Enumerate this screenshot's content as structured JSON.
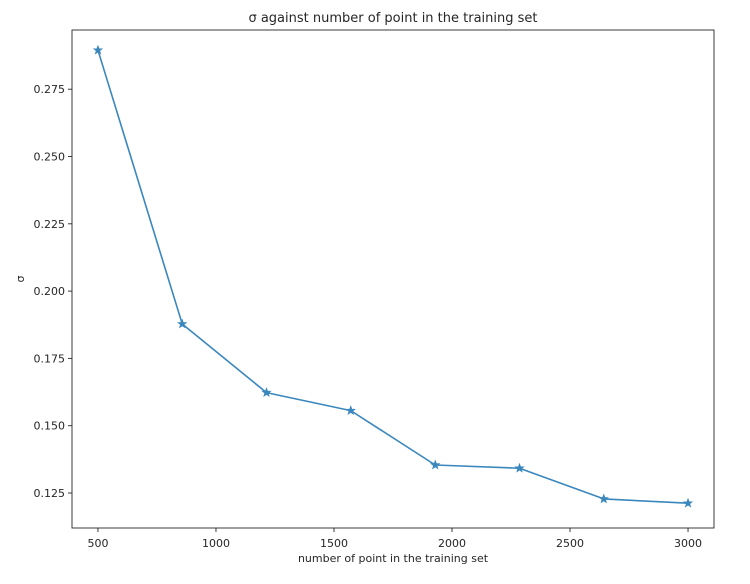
{
  "chart_data": {
    "type": "line",
    "title": "σ against number of point in the training set",
    "xlabel": "number of point in the training set",
    "ylabel": "σ",
    "xlim": [
      390,
      3110
    ],
    "ylim": [
      0.112,
      0.297
    ],
    "x_ticks": [
      500,
      1000,
      1500,
      2000,
      2500,
      3000
    ],
    "y_ticks": [
      0.125,
      0.15,
      0.175,
      0.2,
      0.225,
      0.25,
      0.275
    ],
    "y_tick_labels": [
      "0.125",
      "0.150",
      "0.175",
      "0.200",
      "0.225",
      "0.250",
      "0.275"
    ],
    "grid": false,
    "marker": "star",
    "color": "#3a87be",
    "series": [
      {
        "x": [
          500,
          857,
          1214,
          1571,
          1929,
          2286,
          2643,
          3000
        ],
        "values": [
          0.2895,
          0.1878,
          0.1623,
          0.1556,
          0.1354,
          0.1342,
          0.1228,
          0.1212
        ]
      }
    ]
  }
}
